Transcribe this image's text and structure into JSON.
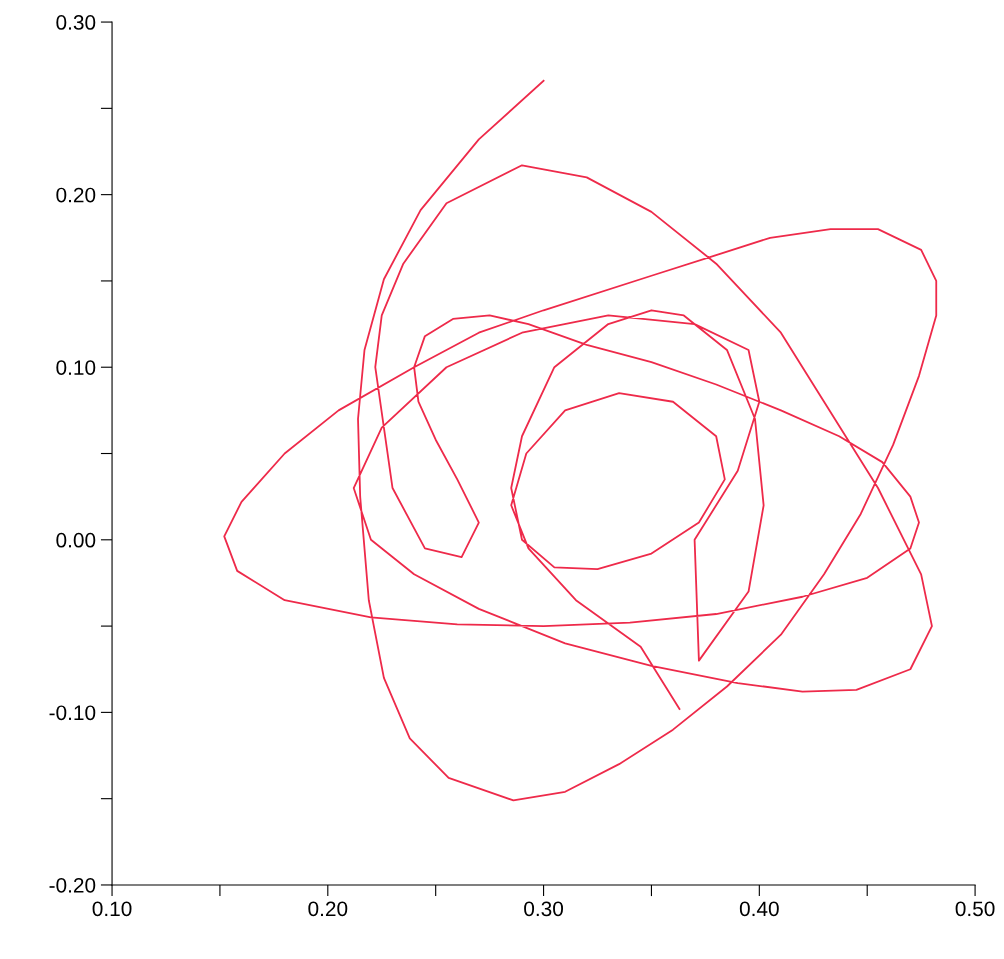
{
  "chart_data": {
    "type": "line",
    "xlim": [
      0.1,
      0.5
    ],
    "ylim": [
      -0.2,
      0.3
    ],
    "xticks": [
      {
        "value": 0.1,
        "label": "0.10"
      },
      {
        "value": 0.15,
        "label": null
      },
      {
        "value": 0.2,
        "label": "0.20"
      },
      {
        "value": 0.25,
        "label": null
      },
      {
        "value": 0.3,
        "label": "0.30"
      },
      {
        "value": 0.35,
        "label": null
      },
      {
        "value": 0.4,
        "label": "0.40"
      },
      {
        "value": 0.45,
        "label": null
      },
      {
        "value": 0.5,
        "label": "0.50"
      }
    ],
    "yticks": [
      {
        "value": -0.2,
        "label": "-0.20"
      },
      {
        "value": -0.15,
        "label": null
      },
      {
        "value": -0.1,
        "label": "-0.10"
      },
      {
        "value": -0.05,
        "label": null
      },
      {
        "value": 0.0,
        "label": "0.00"
      },
      {
        "value": 0.05,
        "label": null
      },
      {
        "value": 0.1,
        "label": "0.10"
      },
      {
        "value": 0.15,
        "label": null
      },
      {
        "value": 0.2,
        "label": "0.20"
      },
      {
        "value": 0.25,
        "label": null
      },
      {
        "value": 0.3,
        "label": "0.30"
      }
    ],
    "grid": false,
    "marker": "none",
    "line_style": "solid",
    "series": [
      {
        "color": "#ee2a4a",
        "x": [
          0.3,
          0.27,
          0.243,
          0.226,
          0.217,
          0.214,
          0.215,
          0.219,
          0.226,
          0.238,
          0.256,
          0.286,
          0.31,
          0.335,
          0.36,
          0.385,
          0.41,
          0.43,
          0.447,
          0.462,
          0.474,
          0.482,
          0.482,
          0.475,
          0.455,
          0.433,
          0.405,
          0.38,
          0.35,
          0.3,
          0.27,
          0.24,
          0.205,
          0.18,
          0.16,
          0.152,
          0.158,
          0.18,
          0.22,
          0.26,
          0.3,
          0.34,
          0.38,
          0.42,
          0.45,
          0.47,
          0.474,
          0.47,
          0.457,
          0.437,
          0.41,
          0.38,
          0.35,
          0.32,
          0.293,
          0.275,
          0.258,
          0.245,
          0.24,
          0.242,
          0.25,
          0.26,
          0.27,
          0.262,
          0.245,
          0.23,
          0.222,
          0.225,
          0.235,
          0.255,
          0.29,
          0.32,
          0.35,
          0.38,
          0.41,
          0.435,
          0.455,
          0.475,
          0.48,
          0.47,
          0.445,
          0.42,
          0.39,
          0.35,
          0.31,
          0.27,
          0.24,
          0.22,
          0.212,
          0.225,
          0.255,
          0.29,
          0.33,
          0.37,
          0.395,
          0.4,
          0.39,
          0.37,
          0.372,
          0.395,
          0.402,
          0.398,
          0.385,
          0.365,
          0.35,
          0.33,
          0.305,
          0.29,
          0.285,
          0.29,
          0.305,
          0.325,
          0.35,
          0.372,
          0.384,
          0.38,
          0.36,
          0.335,
          0.31,
          0.292,
          0.285,
          0.293,
          0.315,
          0.345,
          0.363
        ],
        "values": [
          0.266,
          0.232,
          0.191,
          0.151,
          0.11,
          0.07,
          0.025,
          -0.035,
          -0.08,
          -0.115,
          -0.138,
          -0.151,
          -0.146,
          -0.13,
          -0.11,
          -0.085,
          -0.055,
          -0.02,
          0.015,
          0.055,
          0.095,
          0.13,
          0.15,
          0.168,
          0.18,
          0.18,
          0.175,
          0.165,
          0.153,
          0.133,
          0.12,
          0.1,
          0.075,
          0.05,
          0.022,
          0.002,
          -0.018,
          -0.035,
          -0.045,
          -0.049,
          -0.05,
          -0.048,
          -0.043,
          -0.033,
          -0.022,
          -0.005,
          0.01,
          0.025,
          0.045,
          0.06,
          0.075,
          0.09,
          0.103,
          0.113,
          0.125,
          0.13,
          0.128,
          0.118,
          0.1,
          0.08,
          0.058,
          0.035,
          0.01,
          -0.01,
          -0.005,
          0.03,
          0.1,
          0.13,
          0.16,
          0.195,
          0.217,
          0.21,
          0.19,
          0.16,
          0.12,
          0.07,
          0.03,
          -0.02,
          -0.05,
          -0.075,
          -0.087,
          -0.088,
          -0.083,
          -0.073,
          -0.06,
          -0.04,
          -0.02,
          0.0,
          0.03,
          0.065,
          0.1,
          0.12,
          0.13,
          0.125,
          0.11,
          0.08,
          0.04,
          0.0,
          -0.07,
          -0.03,
          0.02,
          0.07,
          0.11,
          0.13,
          0.133,
          0.125,
          0.1,
          0.06,
          0.03,
          0.0,
          -0.016,
          -0.017,
          -0.008,
          0.01,
          0.035,
          0.06,
          0.08,
          0.085,
          0.075,
          0.05,
          0.02,
          -0.005,
          -0.035,
          -0.062,
          -0.098
        ]
      }
    ]
  }
}
